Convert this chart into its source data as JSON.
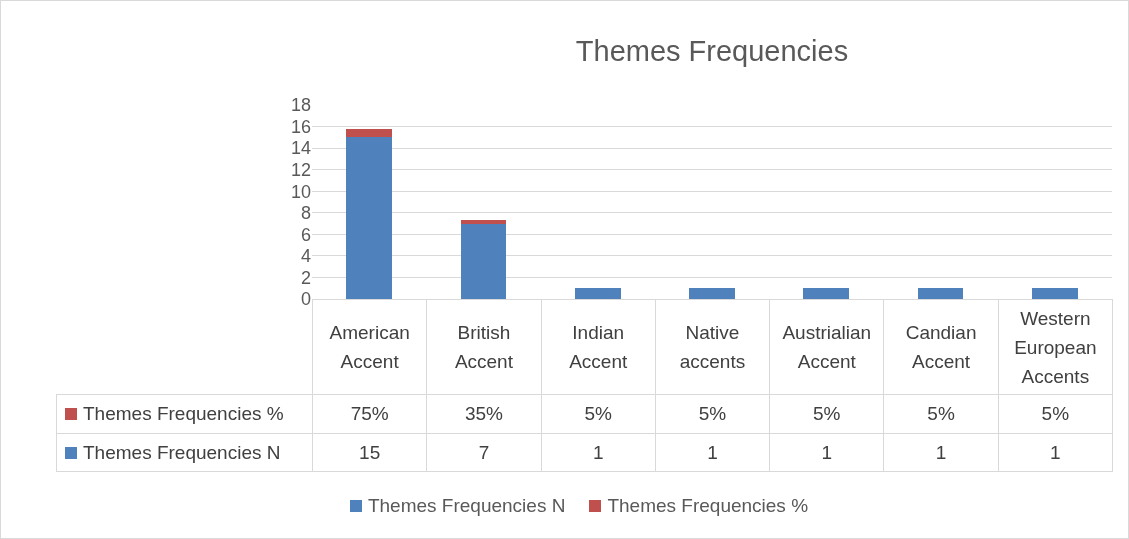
{
  "chart_data": {
    "type": "bar",
    "title": "Themes Frequencies",
    "stacked": true,
    "categories": [
      "American Accent",
      "British Accent",
      "Indian Accent",
      "Native accents",
      "Austrialian Accent",
      "Candian Accent",
      "Western European Accents"
    ],
    "series": [
      {
        "name": "Themes Frequencies N",
        "color": "#4f81bd",
        "values": [
          15,
          7,
          1,
          1,
          1,
          1,
          1
        ],
        "value_labels": [
          "15",
          "7",
          "1",
          "1",
          "1",
          "1",
          "1"
        ]
      },
      {
        "name": "Themes Frequencies %",
        "color": "#c0504d",
        "values": [
          0.75,
          0.35,
          0.05,
          0.05,
          0.05,
          0.05,
          0.05
        ],
        "value_labels": [
          "75%",
          "35%",
          "5%",
          "5%",
          "5%",
          "5%",
          "5%"
        ]
      }
    ],
    "ylim": [
      0,
      18
    ],
    "yticks": [
      0,
      2,
      4,
      6,
      8,
      10,
      12,
      14,
      16,
      18
    ],
    "grid": "y",
    "legend": "bottom"
  }
}
